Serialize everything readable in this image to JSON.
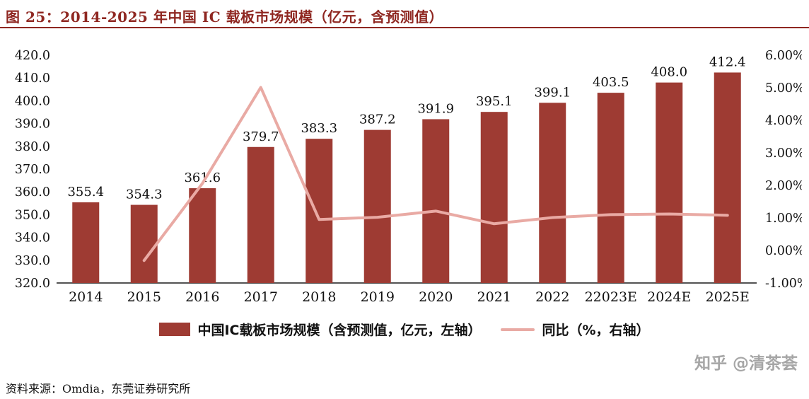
{
  "header": {
    "title": "图 25：2014-2025 年中国 IC 载板市场规模（亿元，含预测值）"
  },
  "chart_data": {
    "type": "bar+line",
    "title": "2014-2025 年中国 IC 载板市场规模（亿元，含预测值）",
    "categories": [
      "2014",
      "2015",
      "2016",
      "2017",
      "2018",
      "2019",
      "2020",
      "2021",
      "2022",
      "22023E",
      "2024E",
      "2025E"
    ],
    "series": [
      {
        "name": "中国IC载板市场规模（含预测值，亿元，左轴）",
        "type": "bar",
        "axis": "left",
        "color": "#9e3b33",
        "values": [
          355.4,
          354.3,
          361.6,
          379.7,
          383.3,
          387.2,
          391.9,
          395.1,
          399.1,
          403.5,
          408.0,
          412.4
        ]
      },
      {
        "name": "同比（%，右轴）",
        "type": "line",
        "axis": "right",
        "color": "#e9aaa4",
        "values": [
          null,
          -0.31,
          2.06,
          5.01,
          0.95,
          1.02,
          1.21,
          0.82,
          1.01,
          1.1,
          1.12,
          1.08
        ]
      }
    ],
    "left_axis": {
      "min": 320,
      "max": 420,
      "step": 10,
      "decimals": 1
    },
    "right_axis": {
      "min": -1,
      "max": 6,
      "step": 1,
      "decimals": 2,
      "suffix": "%"
    },
    "grid": false,
    "legend_position": "bottom"
  },
  "legend": {
    "bar_label": "中国IC载板市场规模（含预测值，亿元，左轴）",
    "line_label": "同比（%，右轴）"
  },
  "watermark": {
    "text": "知乎 @清茶荟"
  },
  "footer": {
    "source": "资料来源：Omdia，东莞证券研究所"
  },
  "colors": {
    "title_red": "#8f2721",
    "bar": "#9e3b33",
    "line": "#e9aaa4",
    "axis_text": "#111111",
    "watermark_gray": "#a6a6a6"
  }
}
